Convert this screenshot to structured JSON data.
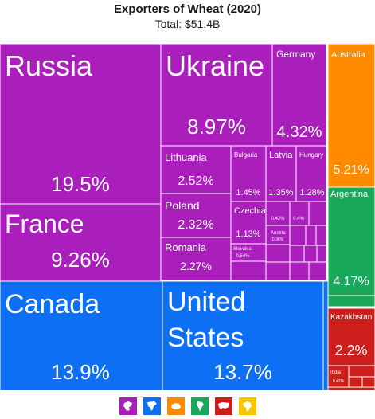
{
  "header": {
    "title": "Exporters of Wheat (2020)",
    "subtitle": "Total: $51.4B"
  },
  "chart_data": {
    "type": "treemap",
    "title": "Exporters of Wheat (2020)",
    "total": "Total: $51.4B",
    "colors": {
      "europe": "#aa1ebb",
      "north_america": "#0d6ff3",
      "oceania": "#ff8a00",
      "south_america": "#19a85a",
      "asia": "#cc1f1b",
      "africa": "#f5c800"
    },
    "items": [
      {
        "name": "Russia",
        "value": 19.5,
        "label": "19.5%",
        "region": "europe"
      },
      {
        "name": "France",
        "value": 9.26,
        "label": "9.26%",
        "region": "europe"
      },
      {
        "name": "Ukraine",
        "value": 8.97,
        "label": "8.97%",
        "region": "europe"
      },
      {
        "name": "Germany",
        "value": 4.32,
        "label": "4.32%",
        "region": "europe"
      },
      {
        "name": "Lithuania",
        "value": 2.52,
        "label": "2.52%",
        "region": "europe"
      },
      {
        "name": "Poland",
        "value": 2.32,
        "label": "2.32%",
        "region": "europe"
      },
      {
        "name": "Romania",
        "value": 2.27,
        "label": "2.27%",
        "region": "europe"
      },
      {
        "name": "Bulgaria",
        "value": 1.45,
        "label": "1.45%",
        "region": "europe"
      },
      {
        "name": "Latvia",
        "value": 1.35,
        "label": "1.35%",
        "region": "europe"
      },
      {
        "name": "Hungary",
        "value": 1.28,
        "label": "1.28%",
        "region": "europe"
      },
      {
        "name": "Czechia",
        "value": 1.13,
        "label": "1.13%",
        "region": "europe"
      },
      {
        "name": "Slovakia",
        "value": 0.54,
        "label": "0.54%",
        "region": "europe"
      },
      {
        "name": "",
        "value": 0.42,
        "label": "0.42%",
        "region": "europe"
      },
      {
        "name": "",
        "value": 0.4,
        "label": "0.4%",
        "region": "europe"
      },
      {
        "name": "Austria",
        "value": 0.36,
        "label": "0.36%",
        "region": "europe"
      },
      {
        "name": "Canada",
        "value": 13.9,
        "label": "13.9%",
        "region": "north_america"
      },
      {
        "name": "United States",
        "value": 13.7,
        "label": "13.7%",
        "region": "north_america"
      },
      {
        "name": "Australia",
        "value": 5.21,
        "label": "5.21%",
        "region": "oceania"
      },
      {
        "name": "Argentina",
        "value": 4.17,
        "label": "4.17%",
        "region": "south_america"
      },
      {
        "name": "Kazakhstan",
        "value": 2.2,
        "label": "2.2%",
        "region": "asia"
      },
      {
        "name": "India",
        "value": 0.47,
        "label": "0.47%",
        "region": "asia"
      }
    ]
  },
  "legend": [
    {
      "icon": "europe-icon",
      "color": "#aa1ebb"
    },
    {
      "icon": "north-america-icon",
      "color": "#0d6ff3"
    },
    {
      "icon": "oceania-icon",
      "color": "#ff8a00"
    },
    {
      "icon": "south-america-icon",
      "color": "#19a85a"
    },
    {
      "icon": "asia-icon",
      "color": "#cc1f1b"
    },
    {
      "icon": "africa-icon",
      "color": "#f5c800"
    }
  ]
}
